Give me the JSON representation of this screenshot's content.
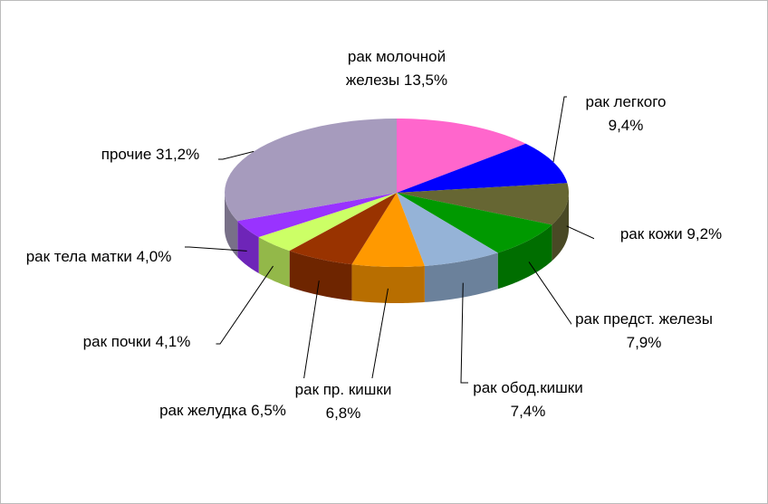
{
  "chart_data": {
    "type": "pie3d",
    "categories": [
      "рак молочной железы",
      "рак легкого",
      "рак кожи",
      "рак предст. железы",
      "рак обод.кишки",
      "рак пр. кишки",
      "рак желудка",
      "рак почки",
      "рак тела матки",
      "прочие"
    ],
    "values": [
      13.5,
      9.4,
      9.2,
      7.9,
      7.4,
      6.8,
      6.5,
      4.1,
      4.0,
      31.2
    ],
    "value_labels": [
      "13,5%",
      "9,4%",
      "9,2%",
      "7,9%",
      "7,4%",
      "6,8%",
      "6,5%",
      "4,1%",
      "4,0%",
      "31,2%"
    ],
    "colors": [
      "#ff66cc",
      "#0000ff",
      "#666633",
      "#009900",
      "#95b3d7",
      "#ff9900",
      "#993300",
      "#ccff66",
      "#9933ff",
      "#a69bbd"
    ]
  }
}
